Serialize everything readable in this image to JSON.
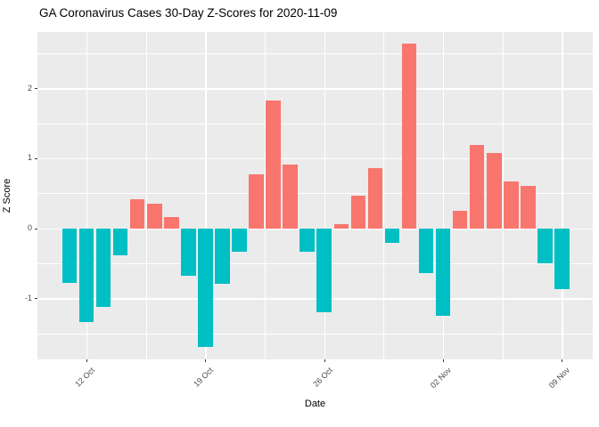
{
  "chart_data": {
    "type": "bar",
    "title": "GA Coronavirus Cases 30-Day Z-Scores for 2020-11-09",
    "xlabel": "Date",
    "ylabel": "Z Score",
    "categories": [
      "2020-10-11",
      "2020-10-12",
      "2020-10-13",
      "2020-10-14",
      "2020-10-15",
      "2020-10-16",
      "2020-10-17",
      "2020-10-18",
      "2020-10-19",
      "2020-10-20",
      "2020-10-21",
      "2020-10-22",
      "2020-10-23",
      "2020-10-24",
      "2020-10-25",
      "2020-10-26",
      "2020-10-27",
      "2020-10-28",
      "2020-10-29",
      "2020-10-30",
      "2020-10-31",
      "2020-11-01",
      "2020-11-02",
      "2020-11-03",
      "2020-11-04",
      "2020-11-05",
      "2020-11-06",
      "2020-11-07",
      "2020-11-08",
      "2020-11-09"
    ],
    "values": [
      -0.78,
      -1.34,
      -1.12,
      -0.38,
      0.42,
      0.35,
      0.16,
      -0.68,
      -1.7,
      -0.79,
      -0.34,
      0.77,
      1.82,
      0.91,
      -0.34,
      -1.2,
      0.06,
      0.46,
      0.86,
      -0.21,
      2.64,
      -0.64,
      -1.25,
      0.25,
      1.19,
      1.07,
      0.67,
      0.61,
      -0.5,
      -0.87
    ],
    "x_tick_labels": [
      "12 Oct",
      "19 Oct",
      "26 Oct",
      "02 Nov",
      "09 Nov"
    ],
    "x_tick_indices": [
      1,
      8,
      15,
      22,
      29
    ],
    "y_tick_labels": [
      "-1",
      "0",
      "1",
      "2"
    ],
    "y_ticks": [
      -1,
      0,
      1,
      2
    ],
    "ylim": [
      -1.872,
      2.804
    ],
    "grid": "on",
    "legend": "none",
    "colors": {
      "positive_bar": "#F8766D",
      "negative_bar": "#00BFC4",
      "panel_background": "#EBEBEB",
      "gridline": "#FFFFFF",
      "axis_text": "#4D4D4D",
      "title_text": "#000000"
    }
  }
}
